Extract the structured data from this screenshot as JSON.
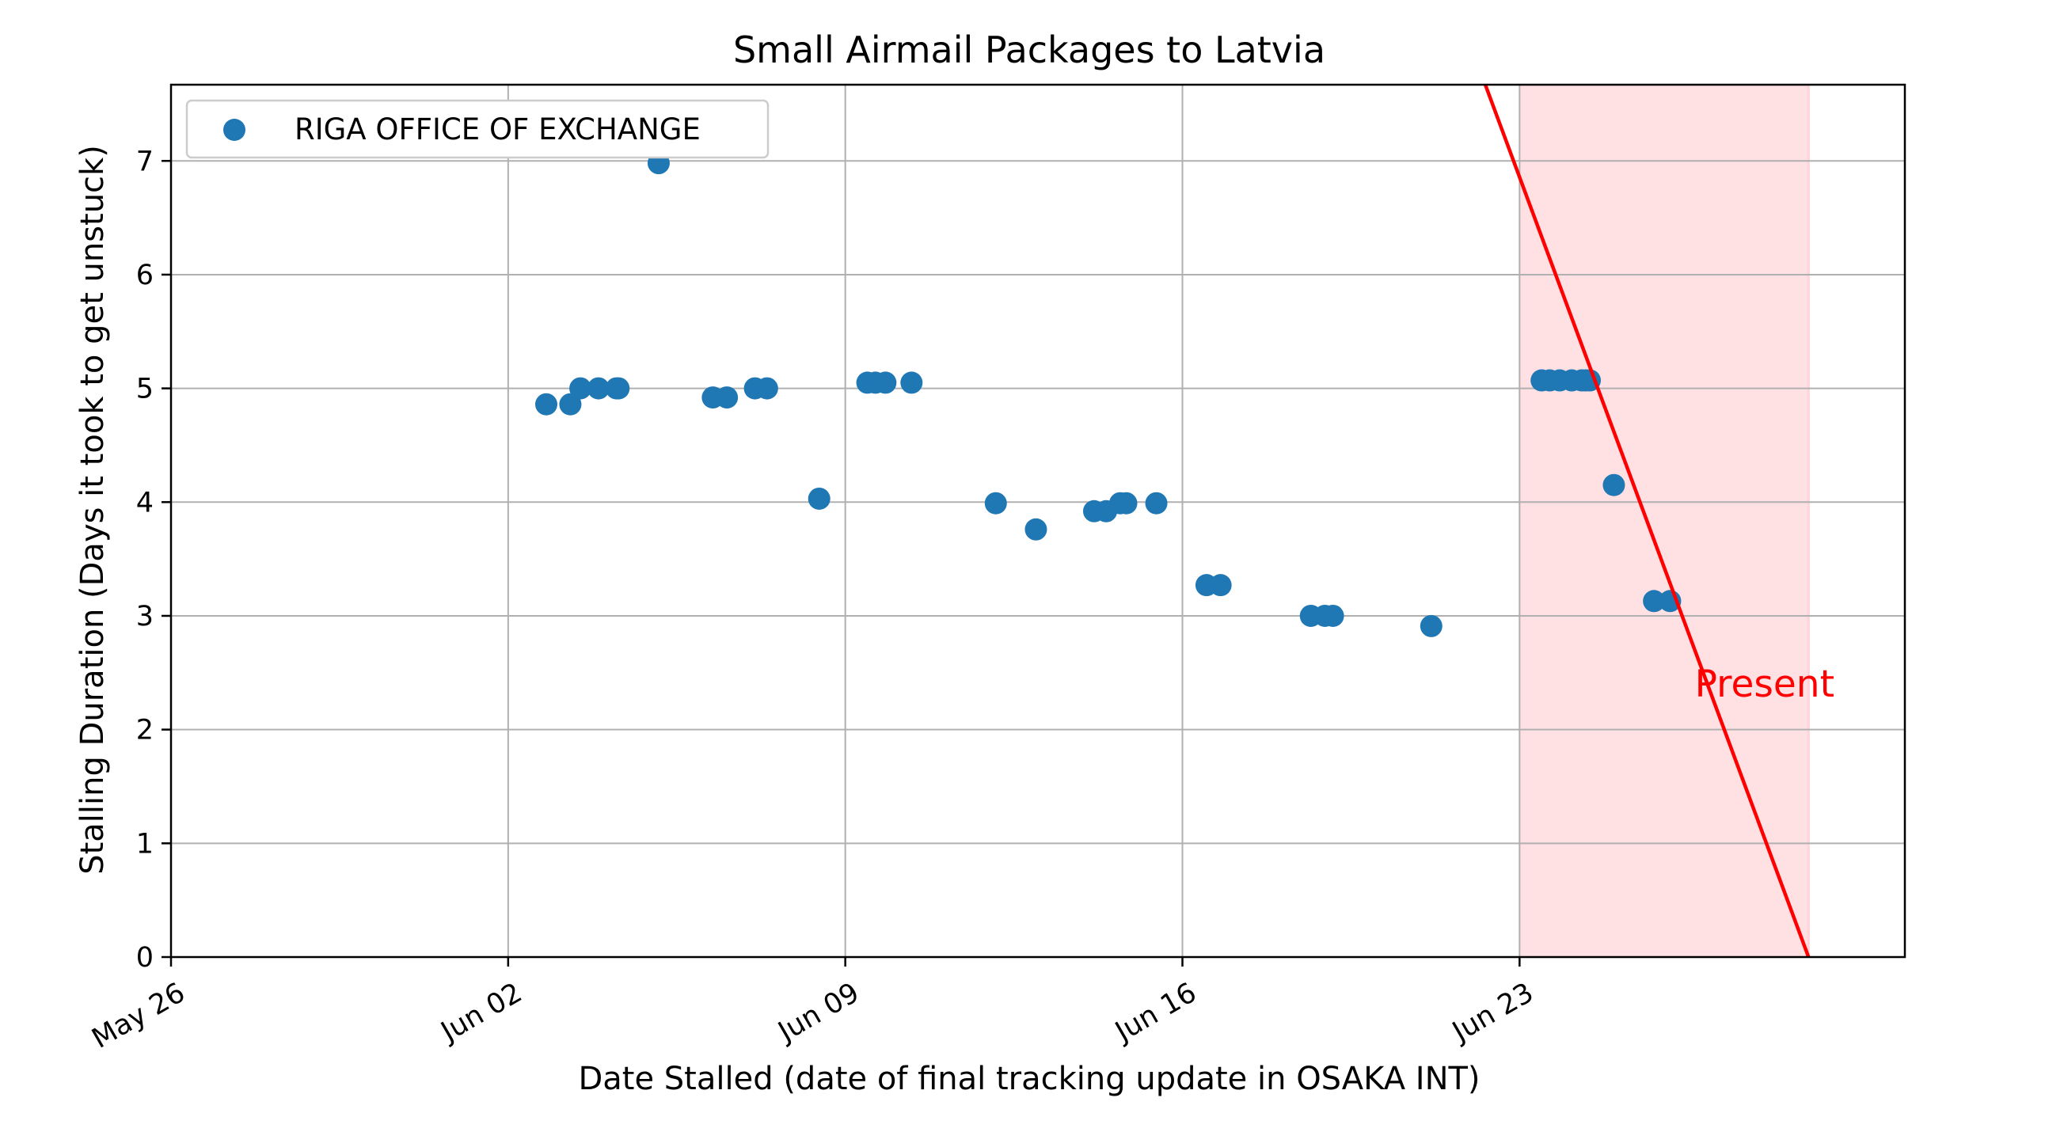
{
  "chart_data": {
    "type": "scatter",
    "title": "Small Airmail Packages to Latvia",
    "xlabel": "Date Stalled (date of final tracking update in OSAKA INT)",
    "ylabel": "Stalling Duration (Days it took to get unstuck)",
    "x_axis": "date",
    "xlim": [
      "May 26",
      "Jul 01"
    ],
    "ylim": [
      0,
      7.67
    ],
    "grid": true,
    "legend_position": "top-left",
    "x_ticks": [
      {
        "date": "May 26",
        "label": "May 26"
      },
      {
        "date": "Jun 02",
        "label": "Jun 02"
      },
      {
        "date": "Jun 09",
        "label": "Jun 09"
      },
      {
        "date": "Jun 16",
        "label": "Jun 16"
      },
      {
        "date": "Jun 23",
        "label": "Jun 23"
      }
    ],
    "y_ticks": [
      0,
      1,
      2,
      3,
      4,
      5,
      6,
      7
    ],
    "series": [
      {
        "name": "RIGA OFFICE OF EXCHANGE",
        "color": "#1f77b4",
        "points": [
          {
            "x": "Jun 02 19:00",
            "y": 4.86
          },
          {
            "x": "Jun 03 07:00",
            "y": 4.86
          },
          {
            "x": "Jun 03 12:00",
            "y": 5.0
          },
          {
            "x": "Jun 03 21:00",
            "y": 5.0
          },
          {
            "x": "Jun 04 06:00",
            "y": 5.0
          },
          {
            "x": "Jun 04 07:00",
            "y": 5.0
          },
          {
            "x": "Jun 05 03:00",
            "y": 6.98
          },
          {
            "x": "Jun 06 06:00",
            "y": 4.92
          },
          {
            "x": "Jun 06 13:00",
            "y": 4.92
          },
          {
            "x": "Jun 07 03:00",
            "y": 5.0
          },
          {
            "x": "Jun 07 09:00",
            "y": 5.0
          },
          {
            "x": "Jun 08 11:00",
            "y": 4.03
          },
          {
            "x": "Jun 09 11:00",
            "y": 5.05
          },
          {
            "x": "Jun 09 15:00",
            "y": 5.05
          },
          {
            "x": "Jun 09 20:00",
            "y": 5.05
          },
          {
            "x": "Jun 10 09:00",
            "y": 5.05
          },
          {
            "x": "Jun 12 03:00",
            "y": 3.99
          },
          {
            "x": "Jun 12 23:00",
            "y": 3.76
          },
          {
            "x": "Jun 14 04:00",
            "y": 3.92
          },
          {
            "x": "Jun 14 10:00",
            "y": 3.92
          },
          {
            "x": "Jun 14 17:00",
            "y": 3.99
          },
          {
            "x": "Jun 14 20:00",
            "y": 3.99
          },
          {
            "x": "Jun 15 11:00",
            "y": 3.99
          },
          {
            "x": "Jun 16 12:00",
            "y": 3.27
          },
          {
            "x": "Jun 16 19:00",
            "y": 3.27
          },
          {
            "x": "Jun 18 16:00",
            "y": 3.0
          },
          {
            "x": "Jun 18 23:00",
            "y": 3.0
          },
          {
            "x": "Jun 19 03:00",
            "y": 3.0
          },
          {
            "x": "Jun 21 04:00",
            "y": 2.91
          },
          {
            "x": "Jun 23 11:00",
            "y": 5.07
          },
          {
            "x": "Jun 23 15:00",
            "y": 5.07
          },
          {
            "x": "Jun 23 20:00",
            "y": 5.07
          },
          {
            "x": "Jun 24 02:00",
            "y": 5.07
          },
          {
            "x": "Jun 24 07:00",
            "y": 5.07
          },
          {
            "x": "Jun 24 09:00",
            "y": 5.07
          },
          {
            "x": "Jun 24 11:00",
            "y": 5.07
          },
          {
            "x": "Jun 24 23:00",
            "y": 4.15
          },
          {
            "x": "Jun 25 19:00",
            "y": 3.13
          },
          {
            "x": "Jun 26 03:00",
            "y": 3.13
          }
        ]
      }
    ],
    "reference_line": {
      "color": "#ff0000",
      "from": {
        "x": "Jun 22 00:00",
        "y": 8.0
      },
      "to": {
        "x": "Jun 29 00:00",
        "y": 0
      }
    },
    "shaded_region": {
      "color": "#ffe0e3",
      "x_from": "Jun 23 00:00",
      "x_to": "Jun 29 00:00"
    },
    "annotations": [
      {
        "text": "Present",
        "color": "#ff0000",
        "x": "Jun 27 00:00",
        "y": 2.4
      }
    ]
  }
}
